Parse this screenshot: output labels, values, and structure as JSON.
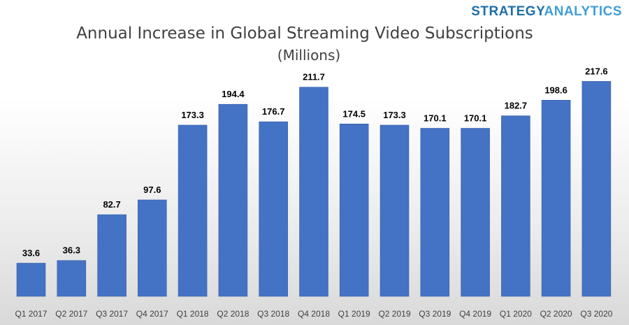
{
  "brand": {
    "part1": "STRATEGY",
    "part2": "ANALYTICS",
    "color1": "#1f6fa8",
    "color2": "#3f9ed8"
  },
  "chart_data": {
    "type": "bar",
    "title": "Annual Increase in Global Streaming Video Subscriptions",
    "subtitle": "(Millions)",
    "categories": [
      "Q1 2017",
      "Q2 2017",
      "Q3 2017",
      "Q4 2017",
      "Q1 2018",
      "Q2 2018",
      "Q3 2018",
      "Q4 2018",
      "Q1 2019",
      "Q2 2019",
      "Q3 2019",
      "Q4 2019",
      "Q1 2020",
      "Q2 2020",
      "Q3 2020"
    ],
    "values": [
      33.6,
      36.3,
      82.7,
      97.6,
      173.3,
      194.4,
      176.7,
      211.7,
      174.5,
      173.3,
      170.1,
      170.1,
      182.7,
      198.6,
      217.6
    ],
    "data_labels": [
      "33.6",
      "36.3",
      "82.7",
      "97.6",
      "173.3",
      "194.4",
      "176.7",
      "211.7",
      "174.5",
      "173.3",
      "170.1",
      "170.1",
      "182.7",
      "198.6",
      "217.6"
    ],
    "ylim": [
      0,
      220
    ],
    "grid": false,
    "legend": "none",
    "bar_color": "#4472c4"
  }
}
